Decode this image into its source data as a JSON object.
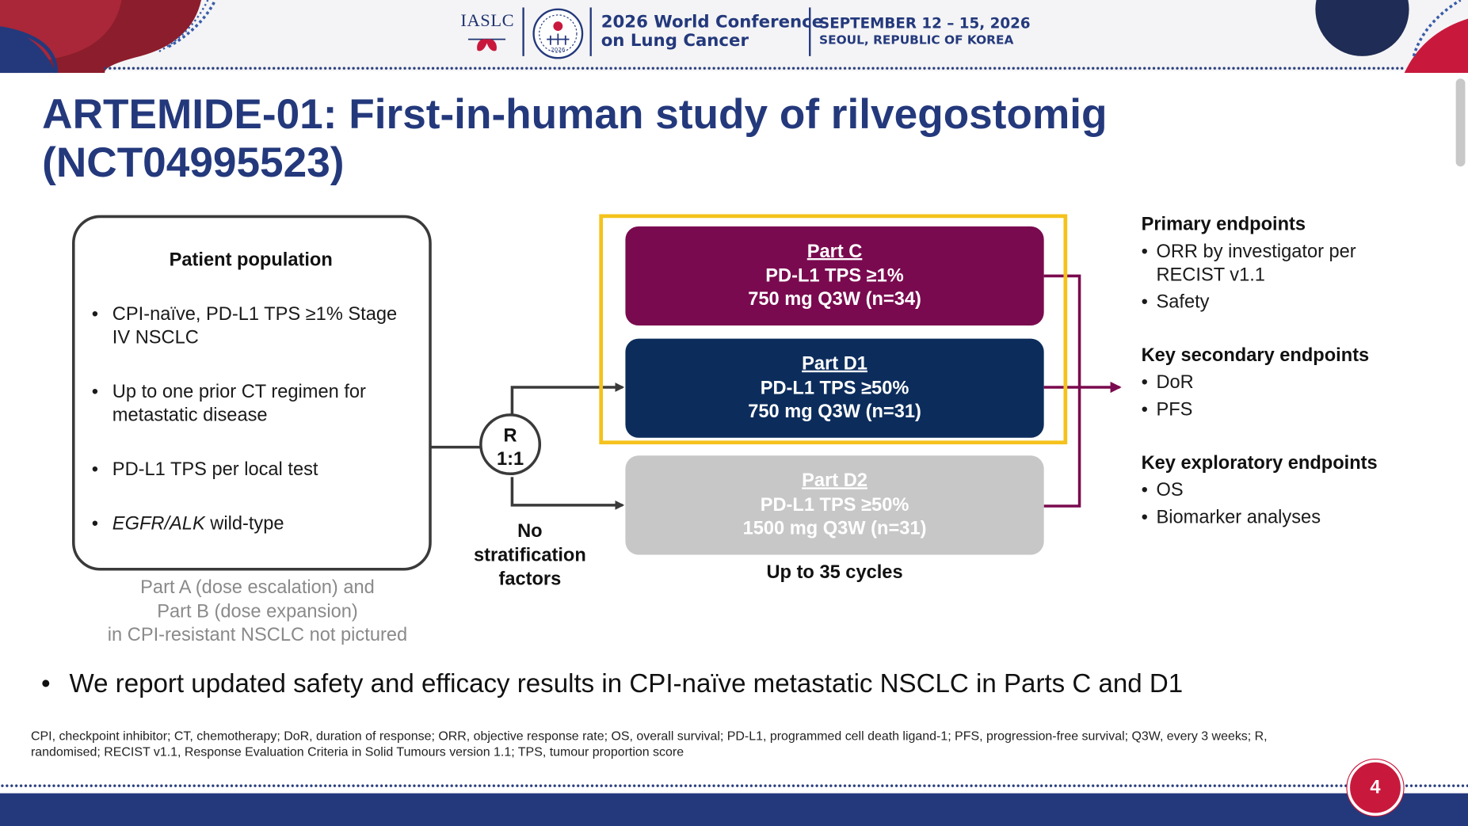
{
  "header": {
    "org": "IASLC",
    "conference_line1": "2026 World Conference",
    "conference_line2": "on Lung Cancer",
    "dates": "SEPTEMBER 12 – 15, 2026",
    "location": "SEOUL, REPUBLIC OF KOREA",
    "emblem_year": "2026"
  },
  "slide": {
    "title_line1": "ARTEMIDE-01: First-in-human study of rilvegostomig",
    "title_line2": "(NCT04995523)",
    "page_number": "4"
  },
  "population": {
    "heading": "Patient population",
    "bullets": [
      {
        "text": "CPI-naïve, PD-L1 TPS ≥1% Stage IV NSCLC"
      },
      {
        "text": "Up to one prior CT regimen for metastatic disease"
      },
      {
        "text": "PD-L1 TPS per local test"
      },
      {
        "italic": "EGFR/ALK",
        "text": " wild-type"
      }
    ],
    "note_line1": "Part A (dose escalation) and",
    "note_line2": "Part B (dose expansion)",
    "note_line3": "in CPI-resistant NSCLC not pictured"
  },
  "randomisation": {
    "line1": "R",
    "line2": "1:1",
    "note_line1": "No",
    "note_line2": "stratification",
    "note_line3": "factors"
  },
  "arms": [
    {
      "name": "Part C",
      "line1": "PD-L1 TPS ≥1%",
      "line2": "750 mg Q3W (n=34)",
      "color": "#7a0a4f"
    },
    {
      "name": "Part D1",
      "line1": "PD-L1 TPS ≥50%",
      "line2": "750 mg Q3W (n=31)",
      "color": "#0c2d5c"
    },
    {
      "name": "Part D2",
      "line1": "PD-L1 TPS ≥50%",
      "line2": "1500 mg Q3W (n=31)",
      "color": "#c7c7c7"
    }
  ],
  "cycles": "Up to 35 cycles",
  "endpoints": {
    "primary_heading": "Primary endpoints",
    "primary": [
      "ORR by investigator per RECIST v1.1",
      "Safety"
    ],
    "secondary_heading": "Key secondary endpoints",
    "secondary": [
      "DoR",
      "PFS"
    ],
    "exploratory_heading": "Key exploratory endpoints",
    "exploratory": [
      "OS",
      "Biomarker analyses"
    ]
  },
  "bullet_char": "•",
  "report": "We report updated safety and efficacy results in CPI-naïve metastatic NSCLC in Parts C and D1",
  "abbreviations": "CPI, checkpoint inhibitor; CT, chemotherapy; DoR, duration of response; ORR, objective response rate; OS, overall survival; PD-L1, programmed cell death ligand-1; PFS, progression-free survival; Q3W, every 3 weeks; R, randomised; RECIST v1.1, Response Evaluation Criteria in Solid Tumours version 1.1; TPS, tumour proportion score",
  "colors": {
    "navy": "#24397c",
    "highlight": "#f4c21c",
    "magenta": "#7a0a4f",
    "red": "#c8193c"
  }
}
